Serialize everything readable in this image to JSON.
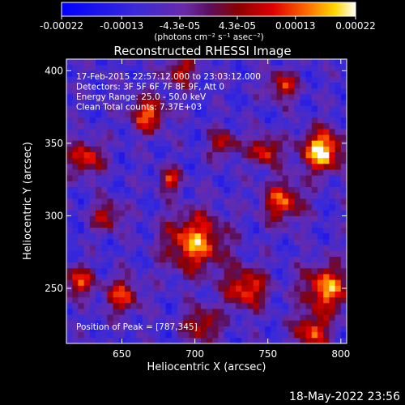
{
  "chart_data": {
    "type": "heatmap",
    "title": "Reconstructed RHESSI Image",
    "xlabel": "Heliocentric X (arcsec)",
    "ylabel": "Heliocentric Y (arcsec)",
    "xlim": [
      612,
      804
    ],
    "ylim": [
      212,
      408
    ],
    "x_ticks": [
      650,
      700,
      750,
      800
    ],
    "y_ticks": [
      250,
      300,
      350,
      400
    ],
    "colorbar": {
      "min": -0.00022,
      "max": 0.00022,
      "tick_labels": [
        "-0.00022",
        "-0.00013",
        "-4.3e-05",
        "4.3e-05",
        "0.00013",
        "0.00022"
      ],
      "tick_values": [
        -0.00022,
        -0.00013,
        -4.3e-05,
        4.3e-05,
        0.00013,
        0.00022
      ],
      "unit_label": "(photons cm⁻² s⁻¹ asec⁻²)",
      "colormap": "blue-purple-red-yellow-white"
    },
    "info_lines": [
      "17-Feb-2015 22:57:12.000 to 23:03:12.000",
      "Detectors: 3F 5F 6F 7F 8F 9F, Att 0",
      "Energy Range: 25.0 - 50.0 keV",
      "Clean    Total counts: 7.37E+03"
    ],
    "peak_label": "Position of Peak = [787,345]",
    "peak": {
      "x": 787,
      "y": 345,
      "value": 0.00022
    },
    "blobs": [
      {
        "x": 787,
        "y": 345,
        "r": 14,
        "v": 0.00022
      },
      {
        "x": 700,
        "y": 282,
        "r": 20,
        "v": 0.00016
      },
      {
        "x": 760,
        "y": 310,
        "r": 14,
        "v": 0.00012
      },
      {
        "x": 668,
        "y": 370,
        "r": 12,
        "v": 0.00013
      },
      {
        "x": 748,
        "y": 345,
        "r": 10,
        "v": 0.00012
      },
      {
        "x": 735,
        "y": 250,
        "r": 14,
        "v": 0.00013
      },
      {
        "x": 790,
        "y": 250,
        "r": 16,
        "v": 0.00016
      },
      {
        "x": 650,
        "y": 245,
        "r": 12,
        "v": 0.0001
      },
      {
        "x": 620,
        "y": 255,
        "r": 10,
        "v": 0.00012
      },
      {
        "x": 690,
        "y": 400,
        "r": 10,
        "v": 9e-05
      },
      {
        "x": 760,
        "y": 390,
        "r": 10,
        "v": 0.0001
      },
      {
        "x": 625,
        "y": 340,
        "r": 12,
        "v": 0.00011
      },
      {
        "x": 780,
        "y": 220,
        "r": 12,
        "v": 0.00012
      },
      {
        "x": 705,
        "y": 225,
        "r": 12,
        "v": 9e-05
      },
      {
        "x": 640,
        "y": 300,
        "r": 10,
        "v": 8e-05
      },
      {
        "x": 720,
        "y": 350,
        "r": 10,
        "v": 7e-05
      },
      {
        "x": 683,
        "y": 325,
        "r": 8,
        "v": 0.0001
      }
    ],
    "grid": false
  },
  "timestamp": "18-May-2022 23:56"
}
